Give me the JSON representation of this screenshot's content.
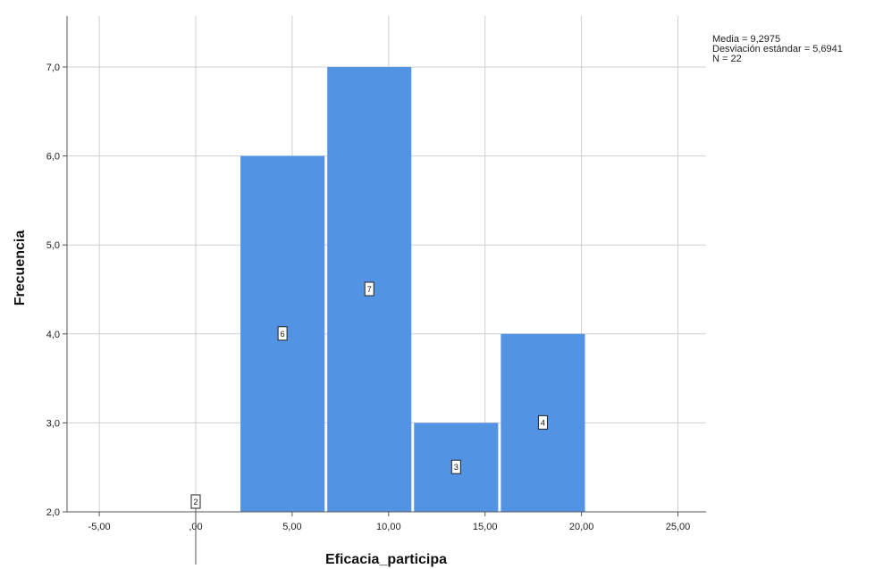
{
  "chart_data": {
    "type": "bar",
    "title": "",
    "xlabel": "Eficacia_participa",
    "ylabel": "Frecuencia",
    "xlim": [
      -6.5,
      27.5
    ],
    "ylim": [
      2,
      7.5
    ],
    "x_ticks": [
      -5,
      0,
      5,
      10,
      15,
      20,
      25
    ],
    "x_tick_labels": [
      "-5,00",
      ",00",
      "5,00",
      "10,00",
      "15,00",
      "20,00",
      "25,00"
    ],
    "y_ticks": [
      2,
      3,
      4,
      5,
      6,
      7
    ],
    "y_tick_labels": [
      "2,0",
      "3,0",
      "4,0",
      "5,0",
      "6,0",
      "7,0"
    ],
    "grid": true,
    "bar_color": "#5393e3",
    "bins": [
      {
        "start": -2.25,
        "end": 2.25,
        "value": 2,
        "label": "2"
      },
      {
        "start": 2.25,
        "end": 6.75,
        "value": 6,
        "label": "6"
      },
      {
        "start": 6.75,
        "end": 11.25,
        "value": 7,
        "label": "7"
      },
      {
        "start": 11.25,
        "end": 15.75,
        "value": 3,
        "label": "3"
      },
      {
        "start": 15.75,
        "end": 20.25,
        "value": 4,
        "label": "4"
      }
    ],
    "stats": [
      "Media = 9,2975",
      "Desviación estándar = 5,6941",
      "N = 22"
    ]
  }
}
